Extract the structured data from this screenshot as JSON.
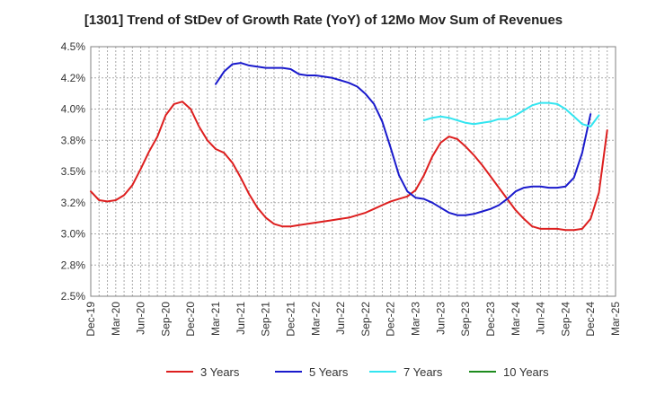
{
  "chart_data": {
    "type": "line",
    "title": "[1301]  Trend of StDev of Growth Rate (YoY) of 12Mo Mov Sum of Revenues",
    "xlabel": "",
    "ylabel": "",
    "ylim": [
      2.5,
      4.5
    ],
    "y_tick_labels": [
      "4.5%",
      "4.2%",
      "4.0%",
      "3.8%",
      "3.5%",
      "3.2%",
      "3.0%",
      "2.8%",
      "2.5%"
    ],
    "y_tick_values": [
      4.5,
      4.25,
      4.0,
      3.75,
      3.5,
      3.25,
      3.0,
      2.75,
      2.5
    ],
    "x_tick_labels": [
      "Dec-19",
      "Mar-20",
      "Jun-20",
      "Sep-20",
      "Dec-20",
      "Mar-21",
      "Jun-21",
      "Sep-21",
      "Dec-21",
      "Mar-22",
      "Jun-22",
      "Sep-22",
      "Dec-22",
      "Mar-23",
      "Jun-23",
      "Sep-23",
      "Dec-23",
      "Mar-24",
      "Jun-24",
      "Sep-24",
      "Dec-24",
      "Mar-25"
    ],
    "x_count": 64,
    "grid": true,
    "legend_position": "bottom",
    "series": [
      {
        "name": "3 Years",
        "color": "#dd1f1f",
        "start_index": 0,
        "values": [
          3.34,
          3.27,
          3.26,
          3.27,
          3.31,
          3.39,
          3.52,
          3.66,
          3.78,
          3.95,
          4.04,
          4.06,
          4.0,
          3.86,
          3.75,
          3.68,
          3.65,
          3.57,
          3.45,
          3.32,
          3.21,
          3.13,
          3.08,
          3.06,
          3.06,
          3.07,
          3.08,
          3.09,
          3.1,
          3.11,
          3.12,
          3.13,
          3.15,
          3.17,
          3.2,
          3.23,
          3.26,
          3.28,
          3.3,
          3.35,
          3.47,
          3.62,
          3.73,
          3.78,
          3.76,
          3.7,
          3.63,
          3.55,
          3.46,
          3.37,
          3.28,
          3.19,
          3.12,
          3.06,
          3.04,
          3.04,
          3.04,
          3.03,
          3.03,
          3.04,
          3.12,
          3.33,
          3.83
        ]
      },
      {
        "name": "5 Years",
        "color": "#1a1acc",
        "start_index": 15,
        "values": [
          4.2,
          4.3,
          4.36,
          4.37,
          4.35,
          4.34,
          4.33,
          4.33,
          4.33,
          4.32,
          4.28,
          4.27,
          4.27,
          4.26,
          4.25,
          4.23,
          4.21,
          4.18,
          4.12,
          4.04,
          3.9,
          3.69,
          3.47,
          3.34,
          3.29,
          3.28,
          3.25,
          3.21,
          3.17,
          3.15,
          3.15,
          3.16,
          3.18,
          3.2,
          3.23,
          3.28,
          3.34,
          3.37,
          3.38,
          3.38,
          3.37,
          3.37,
          3.38,
          3.45,
          3.65,
          3.96
        ]
      },
      {
        "name": "7 Years",
        "color": "#33e5f0",
        "start_index": 40,
        "values": [
          3.91,
          3.93,
          3.94,
          3.93,
          3.91,
          3.89,
          3.88,
          3.89,
          3.9,
          3.92,
          3.92,
          3.95,
          3.99,
          4.03,
          4.05,
          4.05,
          4.04,
          4.0,
          3.94,
          3.88,
          3.86,
          3.95
        ]
      },
      {
        "name": "10 Years",
        "color": "#1e8c1e",
        "start_index": 0,
        "values": []
      }
    ]
  }
}
